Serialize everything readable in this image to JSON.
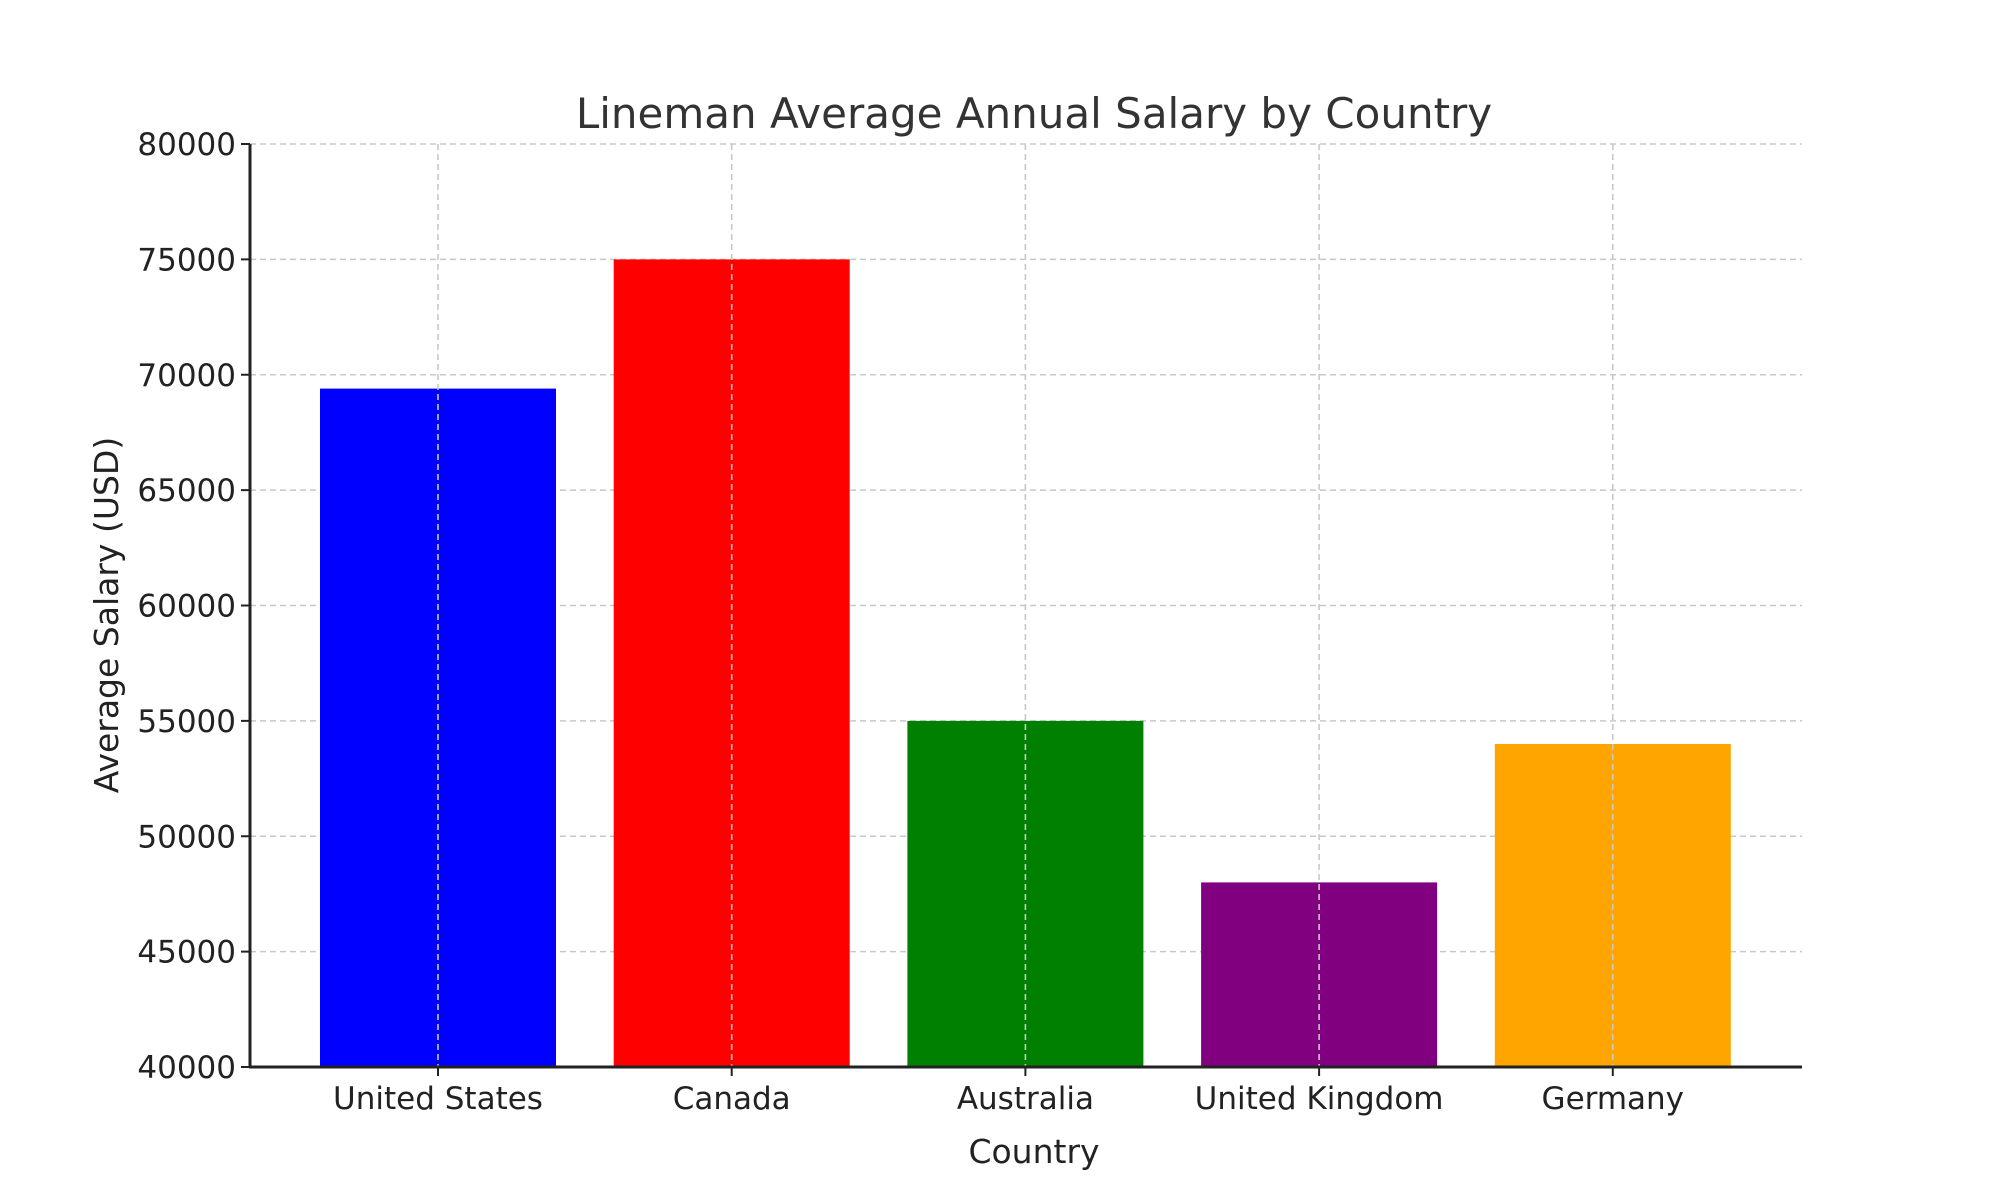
{
  "chart_data": {
    "type": "bar",
    "title": "Lineman Average Annual Salary by Country",
    "xlabel": "Country",
    "ylabel": "Average Salary (USD)",
    "categories": [
      "United States",
      "Canada",
      "Australia",
      "United Kingdom",
      "Germany"
    ],
    "values": [
      69400,
      75000,
      55000,
      48000,
      54000
    ],
    "colors": [
      "#0000ff",
      "#ff0000",
      "#008000",
      "#800080",
      "#ffa500"
    ],
    "ylim": [
      40000,
      80000
    ],
    "yticks": [
      40000,
      45000,
      50000,
      55000,
      60000,
      65000,
      70000,
      75000,
      80000
    ],
    "grid": true,
    "legend": null
  }
}
